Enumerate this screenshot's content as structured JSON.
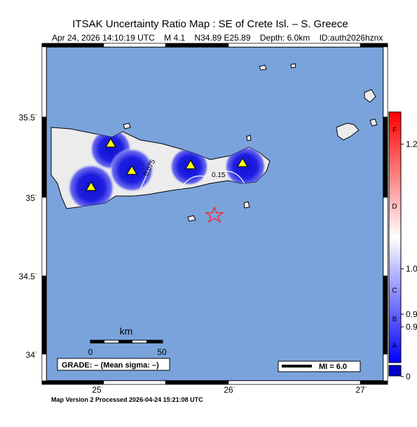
{
  "title": "ITSAK Uncertainty Ratio Map : SE of Crete Isl. – S. Greece",
  "event": {
    "datetime": "Apr 24, 2026 14:10:19 UTC",
    "magnitude": "M 4.1",
    "location": "N34.89 E25.89",
    "depth": "Depth: 6.0km",
    "id": "ID:auth2026hznx"
  },
  "axes": {
    "lat_ticks": [
      "35.5˙",
      "35˙",
      "34.5˙",
      "34˙"
    ],
    "lon_ticks": [
      "25˙",
      "26˙",
      "27˙"
    ]
  },
  "contours": [
    "0.075",
    "0.15"
  ],
  "scalebar": {
    "unit": "km",
    "min": "0",
    "max": "50"
  },
  "grade_box": "GRADE: – (Mean sigma: –)",
  "mi_legend": "MI = 6.0",
  "colorbar": {
    "grades": [
      "F",
      "D",
      "C",
      "B",
      "A"
    ],
    "values": [
      "1.2",
      "1.0",
      "0.9",
      "0.9",
      "0"
    ]
  },
  "footer": "Map Version 2 Processed 2026-04-24 15:21:08 UTC",
  "colors": {
    "sea": "#7aa3dc",
    "land": "#ececec",
    "blue": "#1414d6",
    "station": "#ffff00",
    "epicenter": "#ff2020"
  }
}
